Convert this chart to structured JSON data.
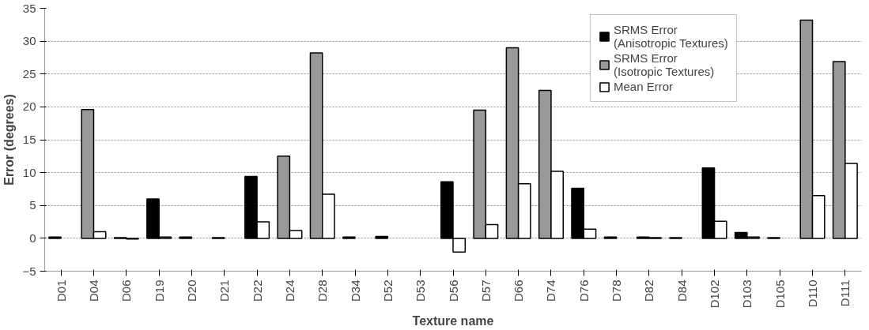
{
  "chart_data": {
    "type": "bar",
    "xlabel": "Texture name",
    "ylabel": "Error (degrees)",
    "categories": [
      "D01",
      "D04",
      "D06",
      "D19",
      "D20",
      "D21",
      "D22",
      "D24",
      "D28",
      "D34",
      "D52",
      "D53",
      "D56",
      "D57",
      "D66",
      "D74",
      "D76",
      "D78",
      "D82",
      "D84",
      "D102",
      "D103",
      "D105",
      "D110",
      "D111"
    ],
    "series": [
      {
        "name": "SRMS Error\n(Anisotropic Textures)",
        "color": "#000000",
        "values": [
          0.2,
          null,
          0.1,
          6.0,
          0.2,
          0.1,
          9.4,
          null,
          null,
          0.2,
          0.3,
          null,
          8.6,
          null,
          null,
          null,
          7.6,
          0.2,
          0.2,
          0.1,
          10.7,
          0.9,
          0.1,
          null,
          null
        ]
      },
      {
        "name": "SRMS Error\n(Isotropic Textures)",
        "color": "#999999",
        "values": [
          null,
          19.6,
          null,
          null,
          null,
          null,
          null,
          12.5,
          28.2,
          null,
          null,
          null,
          null,
          19.5,
          29.0,
          22.5,
          null,
          null,
          null,
          null,
          null,
          null,
          null,
          33.2,
          26.9
        ]
      },
      {
        "name": "Mean Error",
        "color": "#ffffff",
        "values": [
          0,
          1.0,
          -0.1,
          0.2,
          0,
          0,
          2.5,
          1.2,
          6.7,
          0,
          0,
          null,
          -2.1,
          2.1,
          8.3,
          10.2,
          1.4,
          0,
          0.1,
          0,
          2.6,
          0.2,
          0,
          6.5,
          11.4
        ]
      }
    ],
    "ylim": [
      -5,
      35
    ],
    "yticks": [
      -5,
      0,
      5,
      10,
      15,
      20,
      25,
      30,
      35
    ],
    "grid": "y",
    "legend": "top right"
  }
}
